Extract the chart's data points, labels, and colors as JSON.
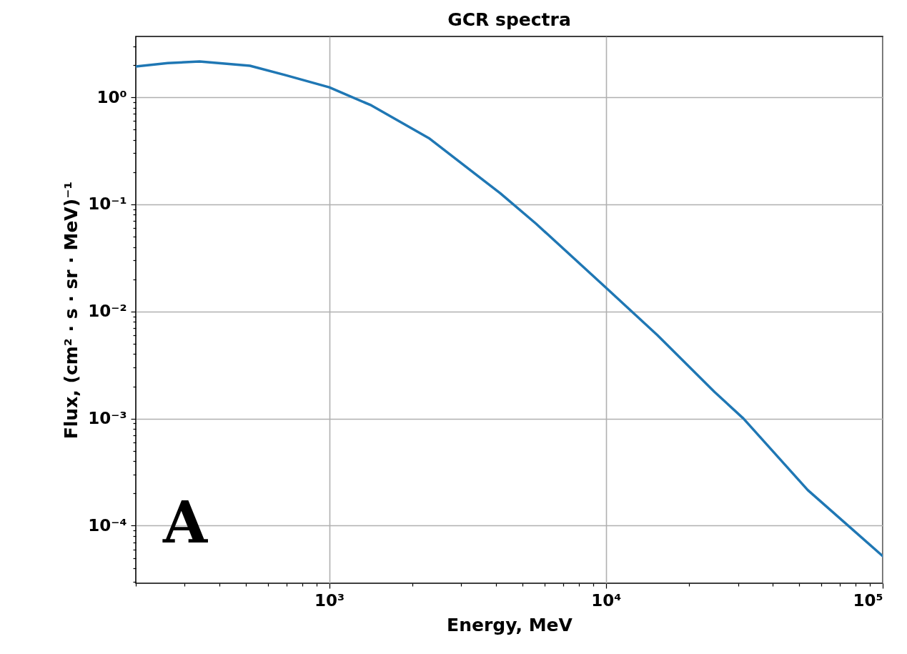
{
  "chart_data": {
    "type": "line",
    "title": "GCR spectra",
    "xlabel": "Energy, MeV",
    "ylabel": "Flux, (cm² · s · sr · MeV)⁻¹",
    "annotations": [
      "A"
    ],
    "log": "xy",
    "grid": true,
    "marker": "none",
    "line_style": "solid",
    "xlim": [
      200,
      100000
    ],
    "ylim": [
      2.9e-05,
      3.7
    ],
    "xticks": [
      {
        "value": 200,
        "label": null
      },
      {
        "value": 300,
        "label": null
      },
      {
        "value": 400,
        "label": null
      },
      {
        "value": 500,
        "label": null
      },
      {
        "value": 600,
        "label": null
      },
      {
        "value": 700,
        "label": null
      },
      {
        "value": 800,
        "label": null
      },
      {
        "value": 900,
        "label": null
      },
      {
        "value": 1000,
        "label": "10³"
      },
      {
        "value": 2000,
        "label": null
      },
      {
        "value": 3000,
        "label": null
      },
      {
        "value": 4000,
        "label": null
      },
      {
        "value": 5000,
        "label": null
      },
      {
        "value": 6000,
        "label": null
      },
      {
        "value": 7000,
        "label": null
      },
      {
        "value": 8000,
        "label": null
      },
      {
        "value": 9000,
        "label": null
      },
      {
        "value": 10000,
        "label": "10⁴"
      },
      {
        "value": 20000,
        "label": null
      },
      {
        "value": 30000,
        "label": null
      },
      {
        "value": 40000,
        "label": null
      },
      {
        "value": 50000,
        "label": null
      },
      {
        "value": 60000,
        "label": null
      },
      {
        "value": 70000,
        "label": null
      },
      {
        "value": 80000,
        "label": null
      },
      {
        "value": 90000,
        "label": null
      },
      {
        "value": 100000,
        "label": "10⁵"
      }
    ],
    "yticks": [
      {
        "value": 3e-05,
        "label": null
      },
      {
        "value": 4e-05,
        "label": null
      },
      {
        "value": 5e-05,
        "label": null
      },
      {
        "value": 6e-05,
        "label": null
      },
      {
        "value": 7e-05,
        "label": null
      },
      {
        "value": 8e-05,
        "label": null
      },
      {
        "value": 9e-05,
        "label": null
      },
      {
        "value": 0.0001,
        "label": "10⁻⁴"
      },
      {
        "value": 0.0002,
        "label": null
      },
      {
        "value": 0.0003,
        "label": null
      },
      {
        "value": 0.0004,
        "label": null
      },
      {
        "value": 0.0005,
        "label": null
      },
      {
        "value": 0.0006,
        "label": null
      },
      {
        "value": 0.0007,
        "label": null
      },
      {
        "value": 0.0008,
        "label": null
      },
      {
        "value": 0.0009,
        "label": null
      },
      {
        "value": 0.001,
        "label": "10⁻³"
      },
      {
        "value": 0.002,
        "label": null
      },
      {
        "value": 0.003,
        "label": null
      },
      {
        "value": 0.004,
        "label": null
      },
      {
        "value": 0.005,
        "label": null
      },
      {
        "value": 0.006,
        "label": null
      },
      {
        "value": 0.007,
        "label": null
      },
      {
        "value": 0.008,
        "label": null
      },
      {
        "value": 0.009,
        "label": null
      },
      {
        "value": 0.01,
        "label": "10⁻²"
      },
      {
        "value": 0.02,
        "label": null
      },
      {
        "value": 0.03,
        "label": null
      },
      {
        "value": 0.04,
        "label": null
      },
      {
        "value": 0.05,
        "label": null
      },
      {
        "value": 0.06,
        "label": null
      },
      {
        "value": 0.07,
        "label": null
      },
      {
        "value": 0.08,
        "label": null
      },
      {
        "value": 0.09,
        "label": null
      },
      {
        "value": 0.1,
        "label": "10⁻¹"
      },
      {
        "value": 0.2,
        "label": null
      },
      {
        "value": 0.3,
        "label": null
      },
      {
        "value": 0.4,
        "label": null
      },
      {
        "value": 0.5,
        "label": null
      },
      {
        "value": 0.6,
        "label": null
      },
      {
        "value": 0.7,
        "label": null
      },
      {
        "value": 0.8,
        "label": null
      },
      {
        "value": 0.9,
        "label": null
      },
      {
        "value": 1,
        "label": "10⁰"
      },
      {
        "value": 2,
        "label": null
      },
      {
        "value": 3,
        "label": null
      }
    ],
    "x": [
      200,
      261,
      340,
      517,
      695,
      1000,
      1420,
      2290,
      4150,
      5590,
      10000,
      15350,
      24700,
      31400,
      53600,
      100000
    ],
    "series": [
      {
        "color": "#1f77b4",
        "values": [
          1.94,
          2.09,
          2.16,
          1.97,
          1.61,
          1.24,
          0.84,
          0.416,
          0.127,
          0.066,
          0.0167,
          0.006,
          0.00177,
          0.001,
          0.000215,
          5.2e-05
        ]
      }
    ]
  }
}
